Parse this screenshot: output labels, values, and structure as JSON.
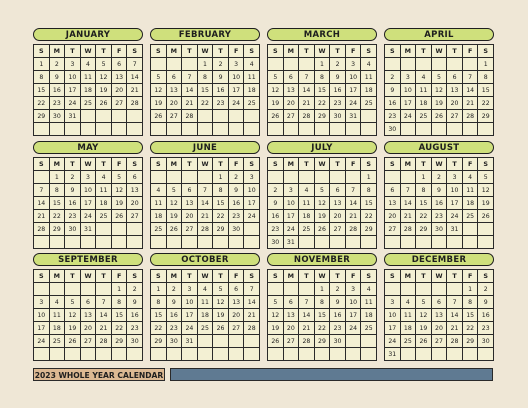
{
  "title": "2023 WHOLE YEAR CALENDAR",
  "weekdays": [
    "S",
    "M",
    "T",
    "W",
    "T",
    "F",
    "S"
  ],
  "colors": {
    "background": "#efe7d6",
    "header": "#cfe07c",
    "grid": "#f3f0d3",
    "title_bg": "#dcb993",
    "bar": "#5f7a92"
  },
  "months": [
    {
      "name": "JANUARY",
      "start": 0,
      "days": 31
    },
    {
      "name": "FEBRUARY",
      "start": 3,
      "days": 28
    },
    {
      "name": "MARCH",
      "start": 3,
      "days": 31
    },
    {
      "name": "APRIL",
      "start": 6,
      "days": 30
    },
    {
      "name": "MAY",
      "start": 1,
      "days": 31
    },
    {
      "name": "JUNE",
      "start": 4,
      "days": 30
    },
    {
      "name": "JULY",
      "start": 6,
      "days": 31
    },
    {
      "name": "AUGUST",
      "start": 2,
      "days": 31
    },
    {
      "name": "SEPTEMBER",
      "start": 5,
      "days": 30
    },
    {
      "name": "OCTOBER",
      "start": 0,
      "days": 31
    },
    {
      "name": "NOVEMBER",
      "start": 3,
      "days": 30
    },
    {
      "name": "DECEMBER",
      "start": 5,
      "days": 31
    }
  ]
}
